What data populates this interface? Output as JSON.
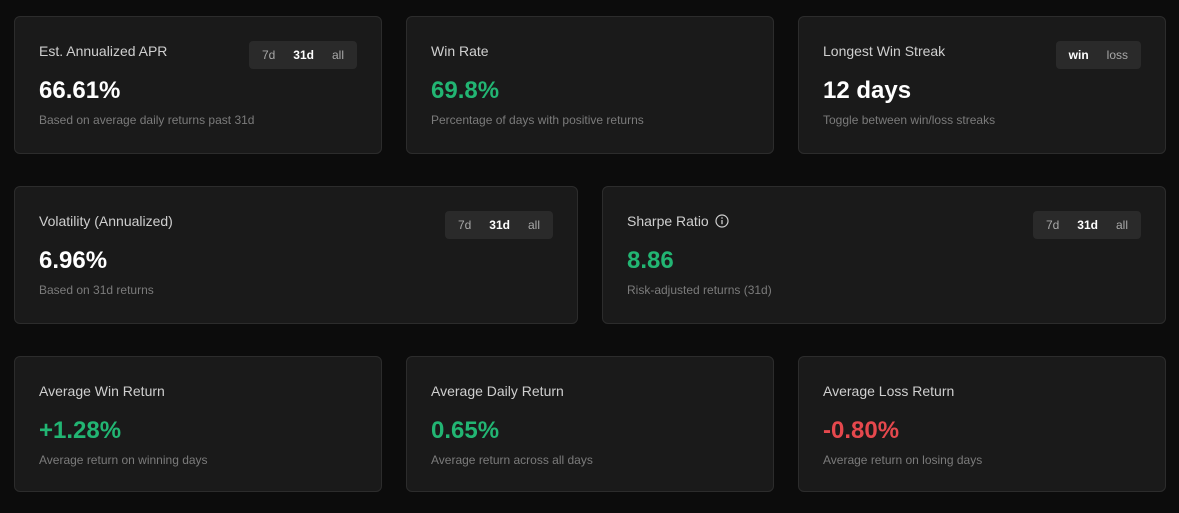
{
  "cards": {
    "apr": {
      "title": "Est. Annualized APR",
      "value": "66.61%",
      "subtitle": "Based on average daily returns past 31d",
      "toggle": [
        "7d",
        "31d",
        "all"
      ],
      "active": "31d"
    },
    "win_rate": {
      "title": "Win Rate",
      "value": "69.8%",
      "subtitle": "Percentage of days with positive returns"
    },
    "streak": {
      "title": "Longest Win Streak",
      "value": "12 days",
      "subtitle": "Toggle between win/loss streaks",
      "toggle": [
        "win",
        "loss"
      ],
      "active": "win"
    },
    "volatility": {
      "title": "Volatility (Annualized)",
      "value": "6.96%",
      "subtitle": "Based on 31d returns",
      "toggle": [
        "7d",
        "31d",
        "all"
      ],
      "active": "31d"
    },
    "sharpe": {
      "title": "Sharpe Ratio",
      "value": "8.86",
      "subtitle": "Risk-adjusted returns (31d)",
      "toggle": [
        "7d",
        "31d",
        "all"
      ],
      "active": "31d",
      "icon": "info-icon"
    },
    "avg_win": {
      "title": "Average Win Return",
      "value": "+1.28%",
      "subtitle": "Average return on winning days"
    },
    "avg_daily": {
      "title": "Average Daily Return",
      "value": "0.65%",
      "subtitle": "Average return across all days"
    },
    "avg_loss": {
      "title": "Average Loss Return",
      "value": "-0.80%",
      "subtitle": "Average return on losing days"
    }
  },
  "colors": {
    "background": "#0c0c0c",
    "card": "#1a1a1a",
    "positive": "#22b573",
    "negative": "#e5484d",
    "neutral_value": "#ffffff"
  }
}
